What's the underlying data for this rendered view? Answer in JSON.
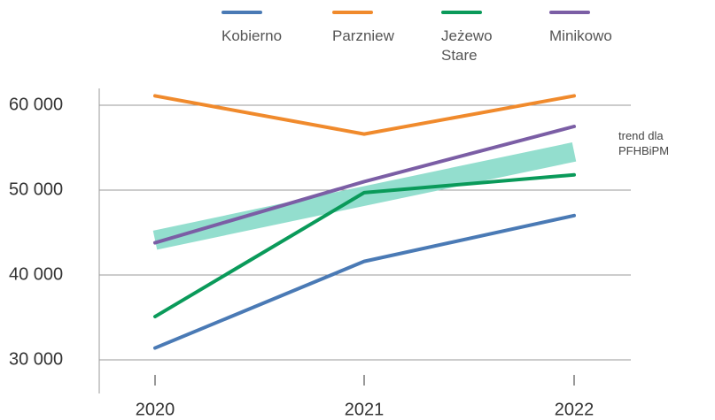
{
  "chart_data": {
    "type": "line",
    "x": [
      "2020",
      "2021",
      "2022"
    ],
    "series": [
      {
        "name": "Kobierno",
        "color": "#4a7ab5",
        "values": [
          31400,
          41600,
          47000
        ]
      },
      {
        "name": "Parzniew",
        "color": "#f08a2c",
        "values": [
          61100,
          56600,
          61100
        ]
      },
      {
        "name": "Jeżewo Stare",
        "color": "#0a9a5a",
        "values": [
          35100,
          49700,
          51800
        ]
      },
      {
        "name": "Minikowo",
        "color": "#7b5ea5",
        "values": [
          43800,
          51000,
          57500
        ]
      }
    ],
    "trend": {
      "name": "trend dla PFHBiPM",
      "color": "#8ddccb",
      "values": [
        44100,
        49300,
        54500
      ]
    },
    "ylim": [
      30000,
      60000
    ],
    "yticks": [
      {
        "value": 30000,
        "label": "30 000"
      },
      {
        "value": 40000,
        "label": "40 000"
      },
      {
        "value": 50000,
        "label": "50 000"
      },
      {
        "value": 60000,
        "label": "60 000"
      }
    ],
    "grid": true
  }
}
